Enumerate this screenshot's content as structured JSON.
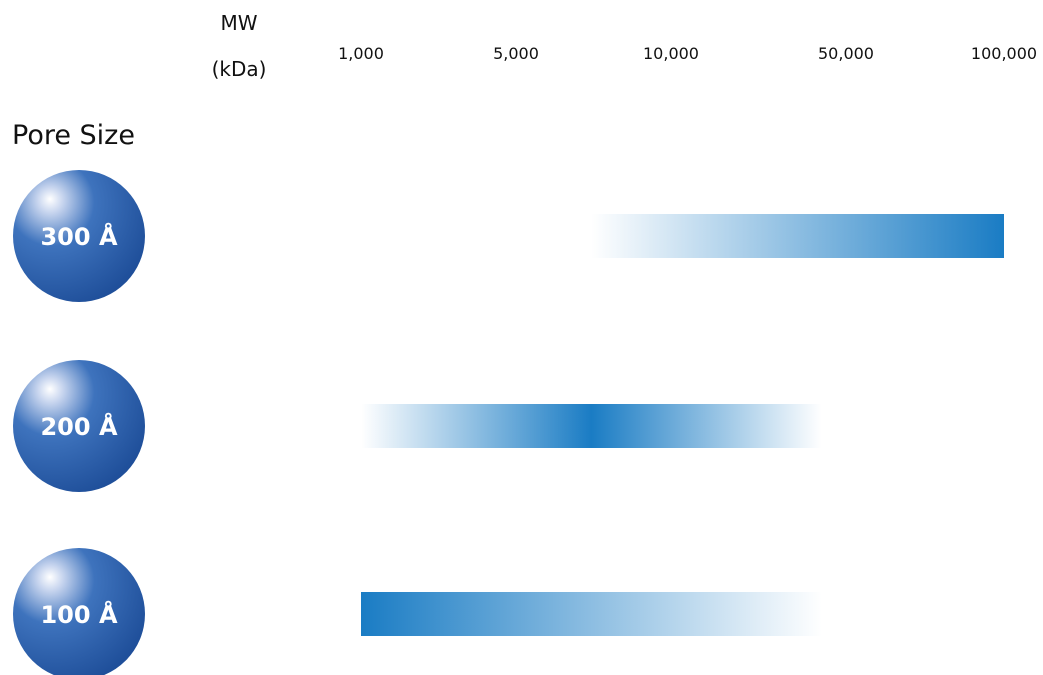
{
  "chart_data": {
    "type": "bar",
    "axis_title_line1": "MW",
    "axis_title_line2": "(kDa)",
    "section_title": "Pore Size",
    "x_tick_labels": [
      "1,000",
      "5,000",
      "10,000",
      "50,000",
      "100,000"
    ],
    "x_tick_values": [
      1000,
      5000,
      10000,
      50000,
      100000
    ],
    "series": [
      {
        "label": "300 Å",
        "range": [
          7000,
          100000
        ],
        "peak": 100000,
        "fade": "left"
      },
      {
        "label": "200 Å",
        "range": [
          1000,
          40000
        ],
        "peak": 7000,
        "fade": "both"
      },
      {
        "label": "100 Å",
        "range": [
          1000,
          40000
        ],
        "peak": 1000,
        "fade": "right"
      }
    ]
  },
  "colors": {
    "bar_color": "#1a7cc4",
    "sphere_dark": "#1f4f9a",
    "sphere_mid": "#3e73bd",
    "sphere_light": "#c9d6ef"
  }
}
